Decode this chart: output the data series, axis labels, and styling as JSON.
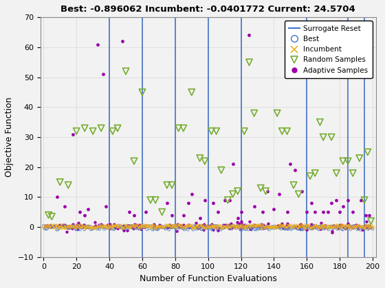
{
  "title": "Best: -0.896062 Incumbent: -0.0401772 Current: 24.5704",
  "xlabel": "Number of Function Evaluations",
  "ylabel": "Objective Function",
  "xlim": [
    -2,
    202
  ],
  "ylim": [
    -10,
    70
  ],
  "yticks": [
    -10,
    0,
    10,
    20,
    30,
    40,
    50,
    60,
    70
  ],
  "xticks": [
    0,
    20,
    40,
    60,
    80,
    100,
    120,
    140,
    160,
    180,
    200
  ],
  "surrogate_reset_x": [
    40,
    60,
    80,
    100,
    120,
    160,
    185,
    195
  ],
  "grid_color": "#e0e0e0",
  "surrogate_color": "#4472C4",
  "best_color": "#4472C4",
  "incumbent_color": "#EDB120",
  "random_color": "#77AC30",
  "adaptive_color": "#9900AA",
  "background_color": "#f2f2f2",
  "rand_positions": [
    [
      3,
      4
    ],
    [
      5,
      3.5
    ],
    [
      10,
      15
    ],
    [
      15,
      14
    ],
    [
      20,
      32
    ],
    [
      25,
      33
    ],
    [
      30,
      32
    ],
    [
      35,
      33
    ],
    [
      42,
      32
    ],
    [
      45,
      33
    ],
    [
      50,
      52
    ],
    [
      55,
      22
    ],
    [
      60,
      45
    ],
    [
      65,
      9
    ],
    [
      68,
      9
    ],
    [
      72,
      5
    ],
    [
      75,
      14
    ],
    [
      78,
      14
    ],
    [
      82,
      33
    ],
    [
      85,
      33
    ],
    [
      90,
      45
    ],
    [
      95,
      23
    ],
    [
      98,
      22
    ],
    [
      102,
      32
    ],
    [
      105,
      32
    ],
    [
      108,
      19
    ],
    [
      112,
      9
    ],
    [
      115,
      11
    ],
    [
      118,
      12
    ],
    [
      122,
      32
    ],
    [
      125,
      55
    ],
    [
      128,
      38
    ],
    [
      132,
      13
    ],
    [
      135,
      12
    ],
    [
      142,
      38
    ],
    [
      145,
      32
    ],
    [
      148,
      32
    ],
    [
      152,
      14
    ],
    [
      155,
      11
    ],
    [
      162,
      17
    ],
    [
      165,
      18
    ],
    [
      168,
      35
    ],
    [
      170,
      30
    ],
    [
      175,
      30
    ],
    [
      178,
      18
    ],
    [
      182,
      22
    ],
    [
      185,
      22
    ],
    [
      188,
      18
    ],
    [
      192,
      23
    ],
    [
      195,
      9
    ],
    [
      197,
      25
    ],
    [
      199,
      2
    ]
  ],
  "adapt_outliers": [
    [
      8,
      10
    ],
    [
      13,
      7
    ],
    [
      18,
      31
    ],
    [
      22,
      5
    ],
    [
      25,
      4
    ],
    [
      27,
      6
    ],
    [
      33,
      61
    ],
    [
      36,
      51
    ],
    [
      38,
      7
    ],
    [
      48,
      62
    ],
    [
      52,
      5
    ],
    [
      55,
      4
    ],
    [
      62,
      5
    ],
    [
      75,
      8
    ],
    [
      78,
      4
    ],
    [
      85,
      4
    ],
    [
      88,
      8
    ],
    [
      90,
      11
    ],
    [
      95,
      3
    ],
    [
      98,
      9
    ],
    [
      103,
      8
    ],
    [
      106,
      5
    ],
    [
      110,
      9
    ],
    [
      113,
      9
    ],
    [
      115,
      21
    ],
    [
      118,
      3
    ],
    [
      120,
      5
    ],
    [
      125,
      64
    ],
    [
      128,
      7
    ],
    [
      133,
      5
    ],
    [
      136,
      12
    ],
    [
      140,
      6
    ],
    [
      143,
      11
    ],
    [
      148,
      5
    ],
    [
      150,
      21
    ],
    [
      153,
      19
    ],
    [
      157,
      12
    ],
    [
      160,
      5
    ],
    [
      163,
      8
    ],
    [
      165,
      5
    ],
    [
      170,
      5
    ],
    [
      173,
      5
    ],
    [
      175,
      8
    ],
    [
      178,
      9
    ],
    [
      180,
      5
    ],
    [
      182,
      7
    ],
    [
      185,
      9
    ],
    [
      188,
      5
    ],
    [
      193,
      9
    ],
    [
      196,
      4
    ],
    [
      198,
      4
    ]
  ]
}
